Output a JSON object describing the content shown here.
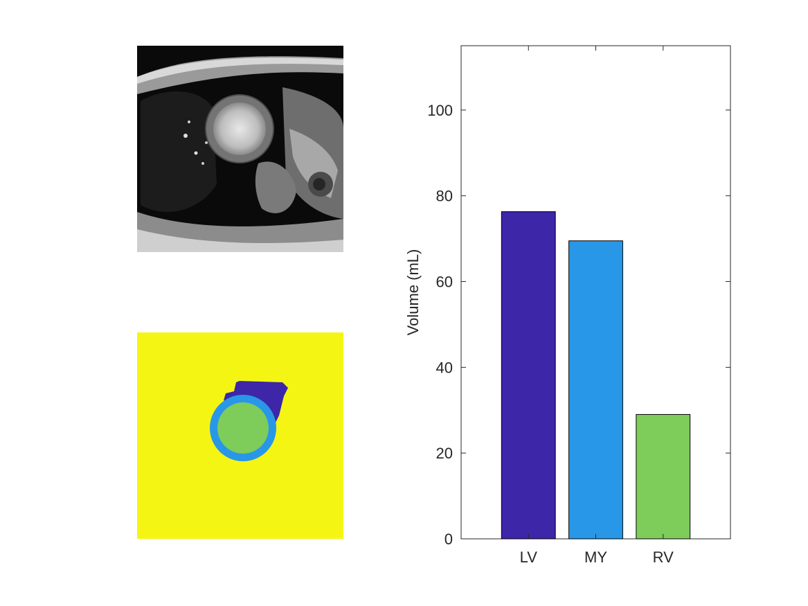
{
  "images": {
    "mri_slice": {
      "description_icon": "cardiac-mri-short-axis-image"
    },
    "segmentation": {
      "background_color": "#F5F514",
      "lv_color": "#7ECC5A",
      "myo_color": "#2897E8",
      "rv_color": "#3D26A8"
    }
  },
  "chart_data": {
    "type": "bar",
    "categories": [
      "LV",
      "MY",
      "RV"
    ],
    "values": [
      76.3,
      69.5,
      29.0
    ],
    "colors": [
      "#3D26A8",
      "#2897E8",
      "#7ECC5A"
    ],
    "ylabel": "Volume (mL)",
    "xlabel": "",
    "ylim": [
      0,
      115
    ],
    "yticks": [
      0,
      20,
      40,
      60,
      80,
      100
    ],
    "grid": false
  }
}
